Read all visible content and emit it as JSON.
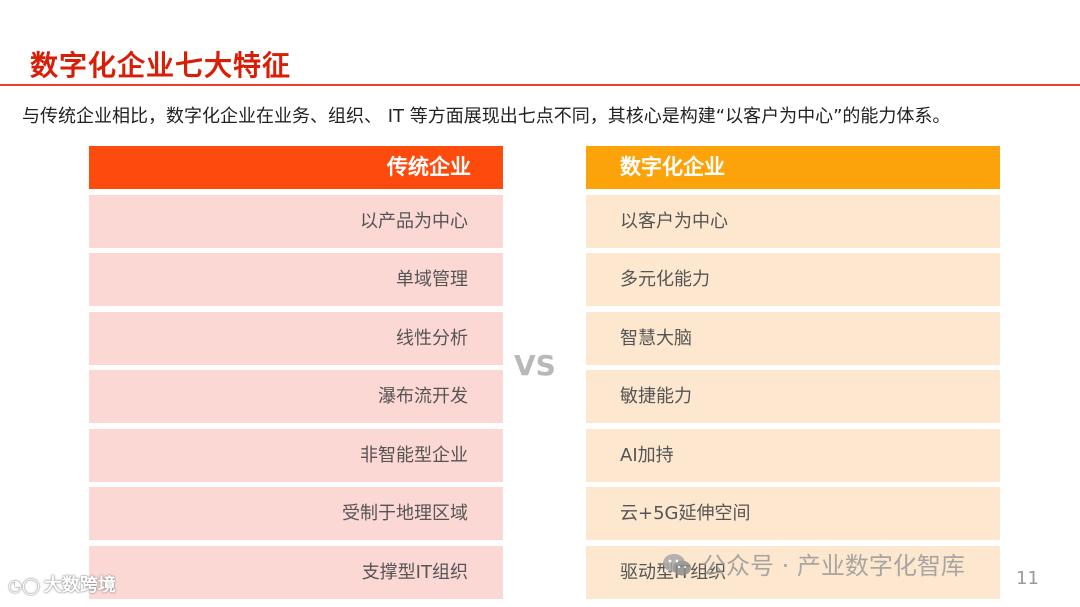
{
  "slide": {
    "title": "数字化企业七大特征",
    "intro": "与传统企业相比，数字化企业在业务、组织、 IT 等方面展现出七点不同，其核心是构建“以客户为中心”的能力体系。",
    "vs": "VS",
    "page_number": "11"
  },
  "left": {
    "header": "传统企业",
    "rows": [
      "以产品为中心",
      "单域管理",
      "线性分析",
      "瀑布流开发",
      "非智能型企业",
      "受制于地理区域",
      "支撑型IT组织"
    ]
  },
  "right": {
    "header": "数字化企业",
    "rows": [
      "以客户为中心",
      "多元化能力",
      "智慧大脑",
      "敏捷能力",
      "AI加持",
      "云+5G延伸空间",
      "驱动型IT组织"
    ]
  },
  "watermarks": {
    "left": "大数跨境",
    "right": "公众号 · 产业数字化智库"
  },
  "colors": {
    "title": "#d81e06",
    "left_header": "#fd4a0d",
    "right_header": "#fca30b",
    "left_row": "#fcd8d5",
    "right_row": "#fde8cf"
  }
}
